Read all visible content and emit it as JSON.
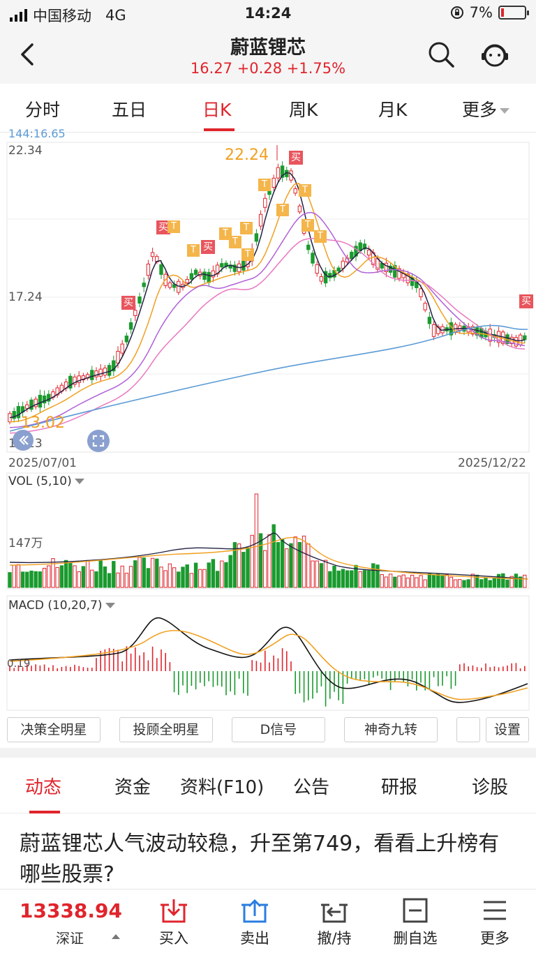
{
  "status_bar": {
    "carrier": "中国移动",
    "network": "4G",
    "time": "14:24",
    "battery": "7%"
  },
  "header": {
    "title": "蔚蓝锂芯",
    "quote": "16.27 +0.28 +1.75%"
  },
  "kline_tabs": [
    {
      "label": "分时"
    },
    {
      "label": "五日"
    },
    {
      "label": "日K"
    },
    {
      "label": "周K"
    },
    {
      "label": "月K"
    },
    {
      "label": "更多"
    }
  ],
  "active_tab": "日K",
  "chart": {
    "ma_legend": "144:16.65",
    "price_high_label": "22.34",
    "price_mid_label": "17.24",
    "price_low_label": "12.13",
    "max_marker": "22.24",
    "min_marker": "13.02",
    "start_date": "2025/07/01",
    "end_date": "2025/12/22",
    "vol_label": "VOL (5,10)",
    "vol_scale": "147万",
    "macd_label": "MACD (10,20,7)",
    "macd_zero": "0.19",
    "buy_tag": "买",
    "t_tag": "T"
  },
  "indicator_buttons": [
    {
      "label": "决策全明星"
    },
    {
      "label": "投顾全明星"
    },
    {
      "label": "D信号"
    },
    {
      "label": "神奇九转"
    },
    {
      "label": "设置"
    }
  ],
  "news_tabs": [
    {
      "label": "动态"
    },
    {
      "label": "资金"
    },
    {
      "label": "资料(F10)"
    },
    {
      "label": "公告"
    },
    {
      "label": "研报"
    },
    {
      "label": "诊股"
    }
  ],
  "news_headline": "蔚蓝锂芯人气波动较稳，升至第749，看看上升榜有哪些股票?",
  "bottom_bar": {
    "index_value": "13338.94",
    "index_name": "深证",
    "actions": [
      {
        "label": "买入"
      },
      {
        "label": "卖出"
      },
      {
        "label": "撤/持"
      },
      {
        "label": "删自选"
      },
      {
        "label": "更多"
      }
    ]
  },
  "colors": {
    "up": "#e0242c",
    "down": "#1a9a2e",
    "ma5": "#222244",
    "ma10": "#f0a020",
    "ma20": "#b060d8",
    "ma30": "#e878c0",
    "ma144": "#5b9bd5"
  }
}
